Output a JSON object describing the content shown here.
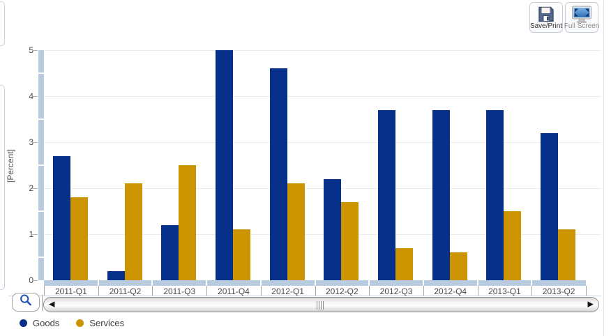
{
  "toolbar": {
    "save_print": {
      "label": "Save/Print",
      "icon": "floppy-disk-icon"
    },
    "full_screen": {
      "label": "Full Screen",
      "icon": "monitor-icon"
    }
  },
  "scroll_controls": {
    "zoom_icon": "magnifier-icon",
    "left_arrow_glyph": "◀",
    "right_arrow_glyph": "▶"
  },
  "chart_data": {
    "type": "bar",
    "categories": [
      "2011-Q1",
      "2011-Q2",
      "2011-Q3",
      "2011-Q4",
      "2012-Q1",
      "2012-Q2",
      "2012-Q3",
      "2012-Q4",
      "2013-Q1",
      "2013-Q2"
    ],
    "series": [
      {
        "name": "Goods",
        "color": "#07308a",
        "values": [
          2.7,
          0.2,
          1.2,
          5.0,
          4.6,
          2.2,
          3.7,
          3.7,
          3.7,
          3.2
        ]
      },
      {
        "name": "Services",
        "color": "#cc9400",
        "values": [
          1.8,
          2.1,
          2.5,
          1.1,
          2.1,
          1.7,
          0.7,
          0.6,
          1.5,
          1.1
        ]
      }
    ],
    "title": "",
    "xlabel": "",
    "ylabel": "[Percent]",
    "ylim": [
      0,
      5
    ],
    "yticks": [
      0,
      1,
      2,
      3,
      4,
      5
    ],
    "grid": true,
    "legend_position": "bottom-left"
  },
  "colors": {
    "goods": "#07308a",
    "services": "#cc9400",
    "axis_band": "#b8cbdf",
    "gridline": "#ececec"
  }
}
